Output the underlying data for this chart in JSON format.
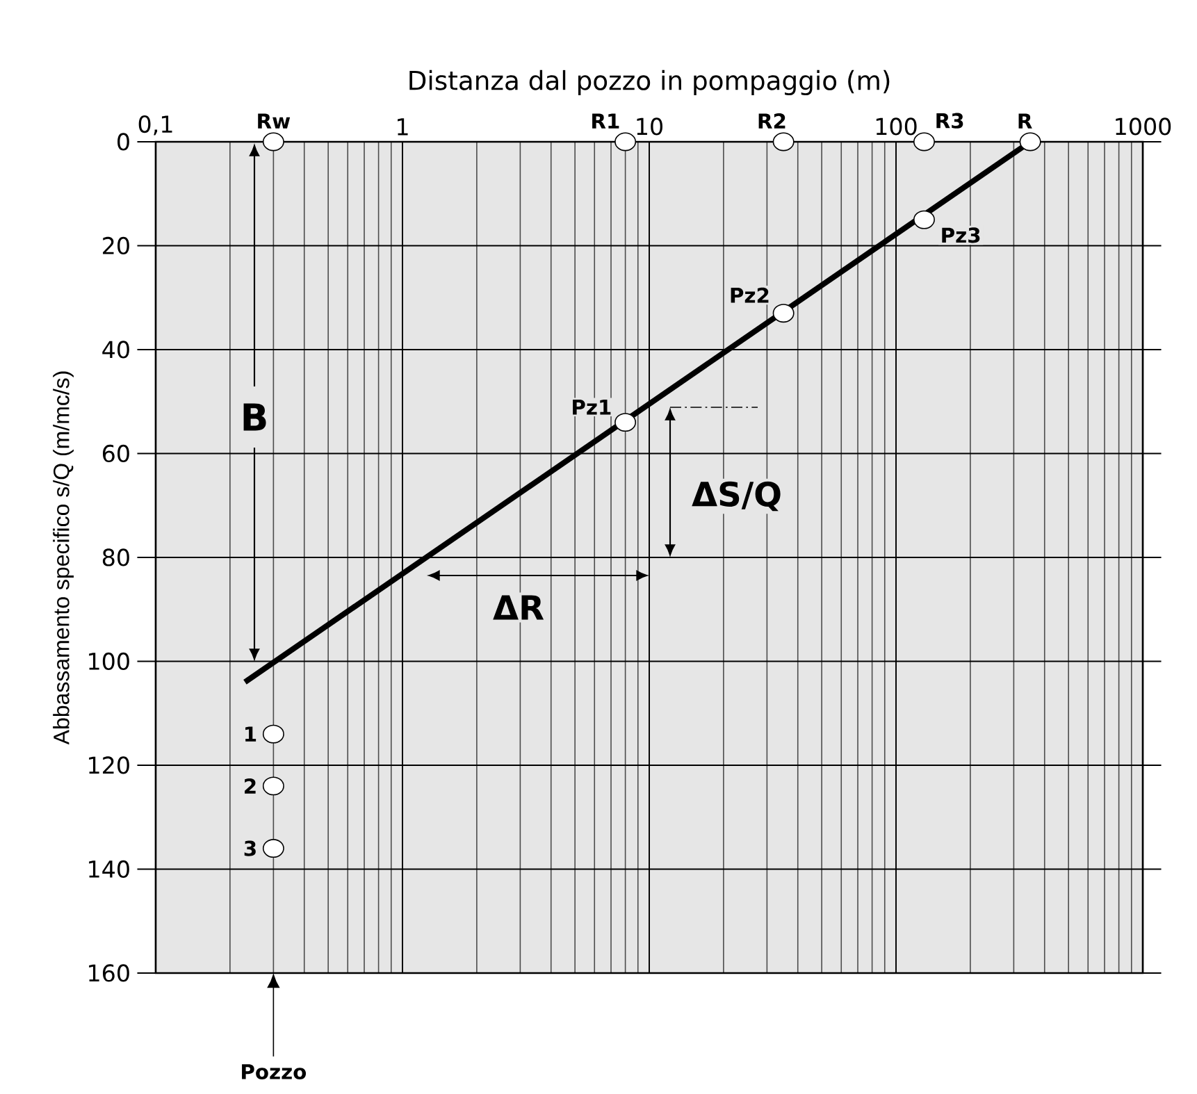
{
  "chart_data": {
    "type": "scatter",
    "xlabel": "Distanza dal pozzo in pompaggio (m)",
    "ylabel": "Abbassamento specifico s/Q (m/mc/s)",
    "log": "x",
    "xlim": [
      0.1,
      1000
    ],
    "xticks": [
      {
        "value": 0.1,
        "label": "0,1"
      },
      1,
      10,
      100,
      1000
    ],
    "ylim": [
      160,
      0
    ],
    "yticks": [
      0,
      20,
      40,
      60,
      80,
      100,
      120,
      140,
      160
    ],
    "grid": true,
    "series": [
      {
        "type": "line",
        "color": "#000000",
        "line_style": "solid",
        "marker": "none",
        "x": [
          0.23,
          350
        ],
        "values": [
          104,
          0
        ]
      },
      {
        "color": "#ffffff",
        "marker": "circle",
        "x": [
          0.3,
          8,
          35,
          130,
          350,
          8,
          35,
          130,
          0.3,
          0.3,
          0.3
        ],
        "values": [
          0,
          0,
          0,
          0,
          0,
          54,
          33,
          15,
          114,
          124,
          136
        ]
      }
    ],
    "annotations": [
      {
        "text": "Rw",
        "x": 0.3,
        "y": 0
      },
      {
        "text": "R1",
        "x": 8,
        "y": 0
      },
      {
        "text": "R2",
        "x": 35,
        "y": 0
      },
      {
        "text": "R3",
        "x": 130,
        "y": 0
      },
      {
        "text": "R",
        "x": 350,
        "y": 0
      },
      {
        "text": "Pz1",
        "x": 8,
        "y": 54
      },
      {
        "text": "Pz2",
        "x": 35,
        "y": 33
      },
      {
        "text": "Pz3",
        "x": 130,
        "y": 15
      },
      {
        "text": "1",
        "x": 0.3,
        "y": 114
      },
      {
        "text": "2",
        "x": 0.3,
        "y": 124
      },
      {
        "text": "3",
        "x": 0.3,
        "y": 136
      },
      "B",
      "ΔS/Q",
      "ΔR",
      "Pozzo"
    ]
  }
}
